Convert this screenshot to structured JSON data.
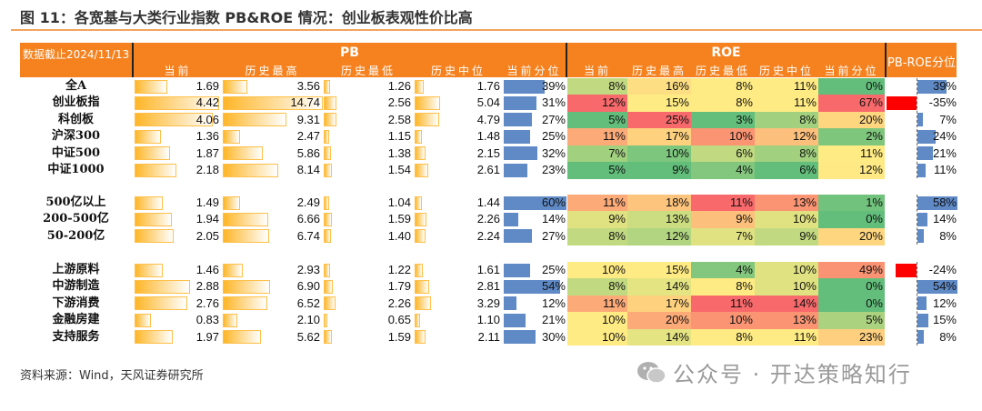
{
  "title": "图 11：各宽基与大类行业指数 PB&ROE 情况：创业板表观性价比高",
  "header": {
    "date_label": "数据截止2024/11/13",
    "pb_label": "PB",
    "roe_label": "ROE",
    "pbroe_label": "PB-ROE分位",
    "pb_columns": [
      "当前",
      "历史最高",
      "历史最低",
      "历史中位",
      "当前分位"
    ],
    "roe_columns": [
      "当前",
      "历史最高",
      "历史最低",
      "历史中位",
      "当前分位"
    ]
  },
  "colors": {
    "header": "#f5821f",
    "bar_orange": "#ffb628",
    "bar_blue": "#5f8ac6",
    "bar_red": "#ff0000",
    "heat_low": "#63be7b",
    "heat_mid": "#ffeb84",
    "heat_high": "#f8696b"
  },
  "chart_data": {
    "type": "table",
    "groups": [
      {
        "rows": [
          {
            "name": "全A",
            "pb": [
              "1.69",
              "3.56",
              "1.26",
              "1.76",
              "39%"
            ],
            "roe": [
              "8%",
              "16%",
              "8%",
              "11%",
              "0%"
            ],
            "pbroe": "39%"
          },
          {
            "name": "创业板指",
            "pb": [
              "4.42",
              "14.74",
              "2.56",
              "5.04",
              "31%"
            ],
            "roe": [
              "12%",
              "15%",
              "8%",
              "11%",
              "67%"
            ],
            "pbroe": "-35%"
          },
          {
            "name": "科创板",
            "pb": [
              "4.06",
              "9.31",
              "2.58",
              "4.79",
              "27%"
            ],
            "roe": [
              "5%",
              "25%",
              "3%",
              "8%",
              "20%"
            ],
            "pbroe": "7%"
          },
          {
            "name": "沪深300",
            "pb": [
              "1.36",
              "2.47",
              "1.15",
              "1.48",
              "25%"
            ],
            "roe": [
              "11%",
              "17%",
              "10%",
              "12%",
              "2%"
            ],
            "pbroe": "24%"
          },
          {
            "name": "中证500",
            "pb": [
              "1.87",
              "5.86",
              "1.38",
              "2.15",
              "32%"
            ],
            "roe": [
              "7%",
              "10%",
              "6%",
              "8%",
              "11%"
            ],
            "pbroe": "21%"
          },
          {
            "name": "中证1000",
            "pb": [
              "2.18",
              "8.14",
              "1.54",
              "2.61",
              "23%"
            ],
            "roe": [
              "5%",
              "9%",
              "4%",
              "6%",
              "12%"
            ],
            "pbroe": "11%"
          }
        ]
      },
      {
        "rows": [
          {
            "name": "500亿以上",
            "pb": [
              "1.49",
              "2.49",
              "1.04",
              "1.44",
              "60%"
            ],
            "roe": [
              "11%",
              "18%",
              "11%",
              "13%",
              "1%"
            ],
            "pbroe": "58%"
          },
          {
            "name": "200-500亿",
            "pb": [
              "1.94",
              "6.66",
              "1.59",
              "2.26",
              "14%"
            ],
            "roe": [
              "9%",
              "13%",
              "9%",
              "10%",
              "0%"
            ],
            "pbroe": "14%"
          },
          {
            "name": "50-200亿",
            "pb": [
              "2.05",
              "6.74",
              "1.40",
              "2.24",
              "27%"
            ],
            "roe": [
              "8%",
              "12%",
              "7%",
              "9%",
              "20%"
            ],
            "pbroe": "8%"
          }
        ]
      },
      {
        "rows": [
          {
            "name": "上游原料",
            "pb": [
              "1.46",
              "2.93",
              "1.22",
              "1.61",
              "25%"
            ],
            "roe": [
              "10%",
              "15%",
              "4%",
              "10%",
              "49%"
            ],
            "pbroe": "-24%"
          },
          {
            "name": "中游制造",
            "pb": [
              "2.88",
              "6.90",
              "1.79",
              "2.81",
              "54%"
            ],
            "roe": [
              "8%",
              "14%",
              "8%",
              "10%",
              "0%"
            ],
            "pbroe": "54%"
          },
          {
            "name": "下游消费",
            "pb": [
              "2.76",
              "6.52",
              "2.26",
              "3.29",
              "12%"
            ],
            "roe": [
              "11%",
              "17%",
              "11%",
              "14%",
              "0%"
            ],
            "pbroe": "12%"
          },
          {
            "name": "金融房建",
            "pb": [
              "0.83",
              "2.10",
              "0.65",
              "1.10",
              "21%"
            ],
            "roe": [
              "10%",
              "20%",
              "10%",
              "13%",
              "5%"
            ],
            "pbroe": "15%"
          },
          {
            "name": "支持服务",
            "pb": [
              "1.97",
              "5.62",
              "1.59",
              "2.11",
              "30%"
            ],
            "roe": [
              "10%",
              "14%",
              "8%",
              "11%",
              "23%"
            ],
            "pbroe": "8%"
          }
        ]
      }
    ]
  },
  "footer": {
    "source": "资料来源：Wind，天风证券研究所",
    "watermark": "公众号 · 开达策略知行"
  }
}
